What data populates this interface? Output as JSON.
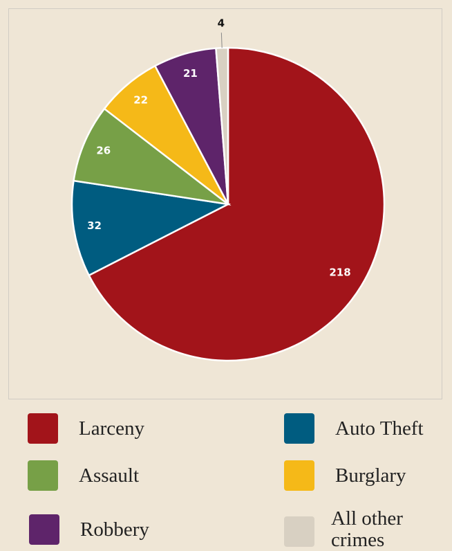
{
  "chart_data": {
    "type": "pie",
    "categories": [
      "Larceny",
      "Auto Theft",
      "Assault",
      "Burglary",
      "Robbery",
      "All other crimes"
    ],
    "values": [
      218,
      32,
      26,
      22,
      21,
      4
    ],
    "colors": [
      "#a2141a",
      "#005c80",
      "#77a047",
      "#f5b918",
      "#5e246a",
      "#d8d0c2"
    ],
    "legend": "bottom"
  }
}
